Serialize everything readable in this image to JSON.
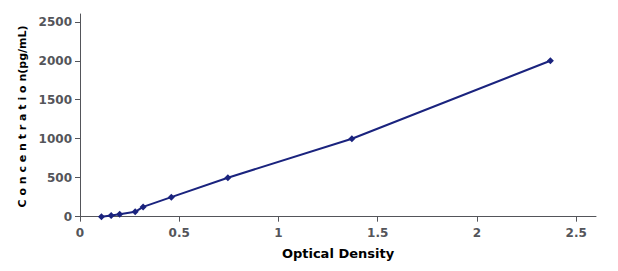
{
  "chart_data": {
    "type": "line",
    "xlabel": "Optical Density",
    "ylabel": "C o n c e n t r a t i o n(pg/mL)",
    "x": [
      0.108,
      0.157,
      0.2,
      0.278,
      0.318,
      0.46,
      0.745,
      1.37,
      2.37
    ],
    "values": [
      0,
      15.6,
      31.2,
      62.5,
      125,
      250,
      500,
      1000,
      2000
    ],
    "color": "#1a237e",
    "marker": "diamond",
    "line_style": "solid",
    "xlim": [
      0.0,
      2.6
    ],
    "ylim": [
      -30,
      2600
    ],
    "xticks": [
      0,
      0.5,
      1,
      1.5,
      2,
      2.5
    ],
    "yticks": [
      0,
      500,
      1000,
      1500,
      2000,
      2500
    ],
    "grid": false
  }
}
